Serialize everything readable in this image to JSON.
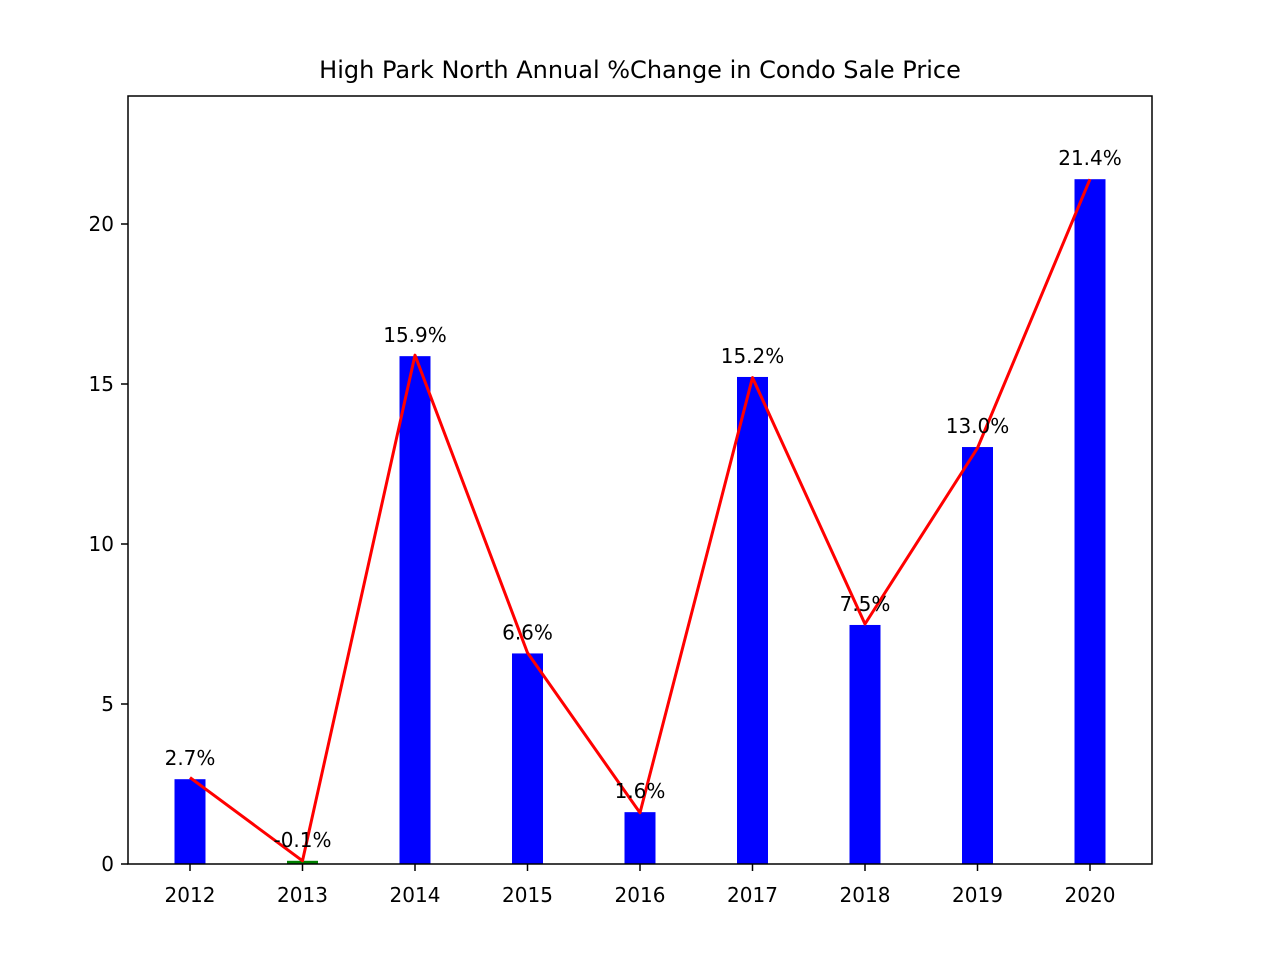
{
  "chart_data": {
    "type": "bar",
    "title": "High Park North Annual %Change in Condo Sale Price",
    "xlabel": "",
    "ylabel": "",
    "categories": [
      "2012",
      "2013",
      "2014",
      "2015",
      "2016",
      "2017",
      "2018",
      "2019",
      "2020"
    ],
    "values": [
      2.7,
      -0.1,
      15.9,
      6.6,
      1.6,
      15.2,
      7.5,
      13.0,
      21.4
    ],
    "bar_heights": [
      2.65,
      0.1,
      15.87,
      6.58,
      1.62,
      15.22,
      7.47,
      13.03,
      21.4
    ],
    "data_labels": [
      "2.7%",
      "-0.1%",
      "15.9%",
      "6.6%",
      "1.6%",
      "15.2%",
      "7.5%",
      "13.0%",
      "21.4%"
    ],
    "line_values": [
      2.7,
      0.1,
      15.9,
      6.6,
      1.6,
      15.2,
      7.5,
      13.0,
      21.4
    ],
    "ylim": [
      0,
      24
    ],
    "yticks": [
      0,
      5,
      10,
      15,
      20
    ],
    "grid": false,
    "colors": {
      "positive_bar": "#0000ff",
      "negative_bar": "#008000",
      "line": "#ff0000"
    }
  }
}
